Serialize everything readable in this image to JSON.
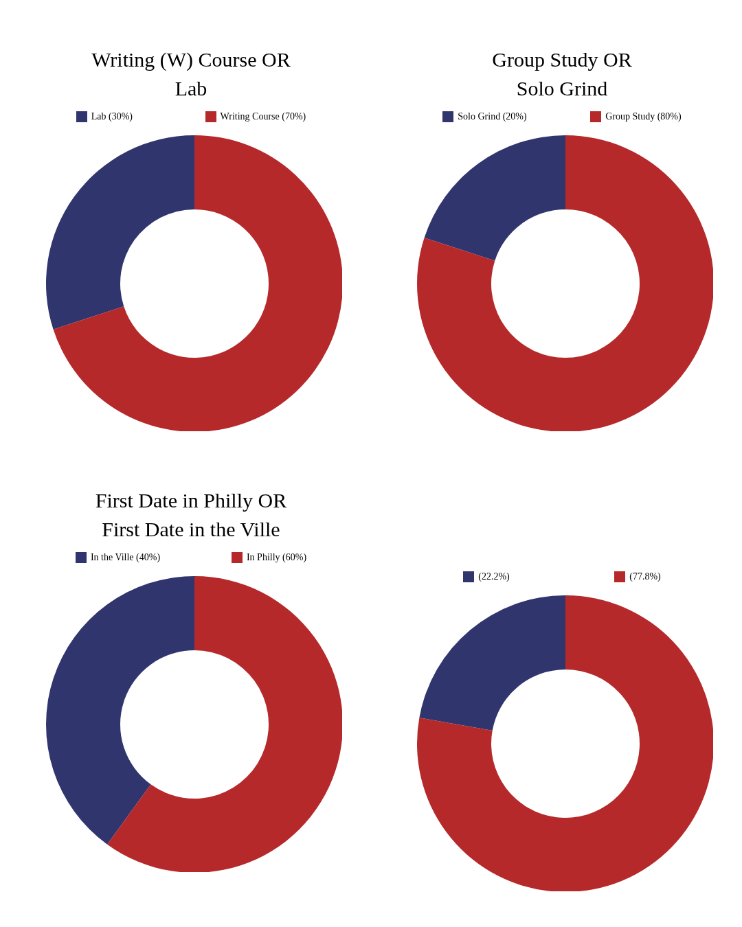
{
  "chart_data": [
    {
      "type": "donut",
      "title": "Writing (W) Course OR\nLab",
      "categories": [
        "Lab",
        "Writing Course"
      ],
      "values": [
        30,
        70
      ],
      "value_labels": [
        "(30%)",
        "(70%)"
      ],
      "colors": [
        "#31356e",
        "#b5292b"
      ],
      "legend": "top"
    },
    {
      "type": "donut",
      "title": "Group Study OR\nSolo Grind",
      "categories": [
        "Solo Grind",
        "Group Study"
      ],
      "values": [
        20,
        80
      ],
      "value_labels": [
        "(20%)",
        "(80%)"
      ],
      "colors": [
        "#31356e",
        "#b5292b"
      ],
      "legend": "top"
    },
    {
      "type": "donut",
      "title": "First Date in Philly OR\nFirst Date in the Ville",
      "categories": [
        "In the Ville",
        "In Philly"
      ],
      "values": [
        40,
        60
      ],
      "value_labels": [
        "(40%)",
        "(60%)"
      ],
      "colors": [
        "#31356e",
        "#b5292b"
      ],
      "legend": "top"
    },
    {
      "type": "donut",
      "categories": [
        null,
        null
      ],
      "values": [
        22.2,
        77.8
      ],
      "value_labels": [
        "(22.2%)",
        "(77.8%)"
      ],
      "colors": [
        "#31356e",
        "#b5292b"
      ]
    }
  ]
}
